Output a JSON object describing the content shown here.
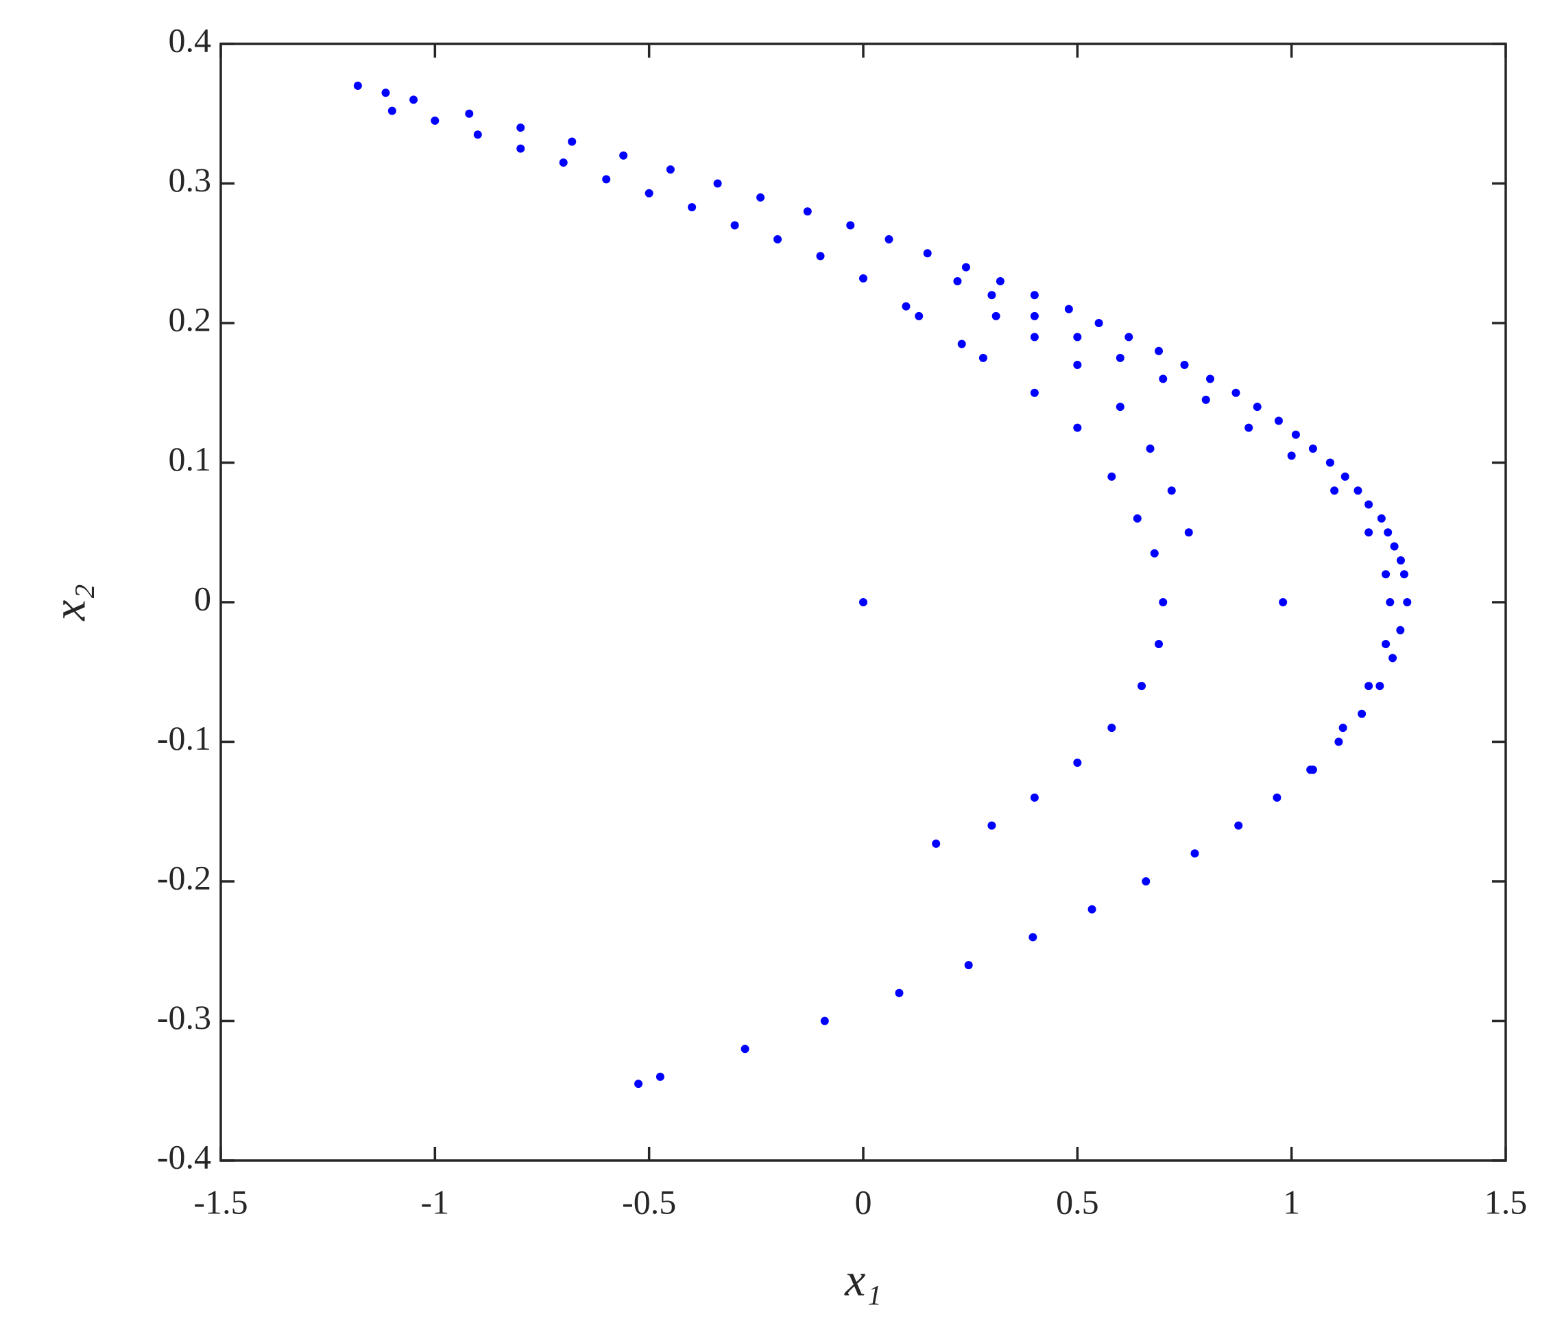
{
  "chart_data": {
    "type": "scatter",
    "xlabel": "x₁",
    "ylabel": "x₂",
    "color": "#0000ff",
    "xlim": [
      -1.5,
      1.5
    ],
    "ylim": [
      -0.4,
      0.4
    ],
    "xticks": [
      -1.5,
      -1,
      -0.5,
      0,
      0.5,
      1,
      1.5
    ],
    "yticks": [
      -0.4,
      -0.3,
      -0.2,
      -0.1,
      0,
      0.1,
      0.2,
      0.3,
      0.4
    ],
    "grid": false,
    "x": [
      -1.18,
      -1.115,
      -1.05,
      -0.92,
      -0.8,
      -0.68,
      -0.56,
      -0.45,
      -0.34,
      -0.24,
      -0.13,
      -0.03,
      0.06,
      0.15,
      0.24,
      0.32,
      0.4,
      0.48,
      0.55,
      0.62,
      0.69,
      0.75,
      0.81,
      0.87,
      0.92,
      0.97,
      1.01,
      1.05,
      1.09,
      1.125,
      1.155,
      1.18,
      1.21,
      1.225,
      1.24,
      1.255,
      1.263,
      1.27,
      1.254,
      1.236,
      1.206,
      1.164,
      1.11,
      1.044,
      0.966,
      0.876,
      0.774,
      0.66,
      0.534,
      0.396,
      0.246,
      0.084,
      -0.09,
      -0.276,
      -0.474,
      -0.525,
      -1.1,
      -1.0,
      -0.9,
      -0.8,
      -0.7,
      -0.6,
      -0.5,
      -0.4,
      -0.3,
      -0.2,
      -0.1,
      0.0,
      0.1,
      0.13,
      0.22,
      0.3,
      0.4,
      0.5,
      0.6,
      0.7,
      0.8,
      0.9,
      1.0,
      1.1,
      1.18,
      1.22,
      1.23,
      1.22,
      1.18,
      1.12,
      1.05,
      0.31,
      0.4,
      0.5,
      0.6,
      0.67,
      0.72,
      0.76,
      0.23,
      0.28,
      0.4,
      0.5,
      0.58,
      0.64,
      0.68,
      0.7,
      0.69,
      0.65,
      0.58,
      0.5,
      0.4,
      0.3,
      0.17,
      0,
      0.98
    ],
    "values": [
      0.37,
      0.365,
      0.36,
      0.35,
      0.34,
      0.33,
      0.32,
      0.31,
      0.3,
      0.29,
      0.28,
      0.27,
      0.26,
      0.25,
      0.24,
      0.23,
      0.22,
      0.21,
      0.2,
      0.19,
      0.18,
      0.17,
      0.16,
      0.15,
      0.14,
      0.13,
      0.12,
      0.11,
      0.1,
      0.09,
      0.08,
      0.07,
      0.06,
      0.05,
      0.04,
      0.03,
      0.02,
      0,
      -0.02,
      -0.04,
      -0.06,
      -0.08,
      -0.1,
      -0.12,
      -0.14,
      -0.16,
      -0.18,
      -0.2,
      -0.22,
      -0.24,
      -0.26,
      -0.28,
      -0.3,
      -0.32,
      -0.34,
      -0.345,
      0.352,
      0.345,
      0.335,
      0.325,
      0.315,
      0.303,
      0.293,
      0.283,
      0.27,
      0.26,
      0.248,
      0.232,
      0.212,
      0.205,
      0.23,
      0.22,
      0.205,
      0.19,
      0.175,
      0.16,
      0.145,
      0.125,
      0.105,
      0.08,
      0.05,
      0.02,
      0,
      -0.03,
      -0.06,
      -0.09,
      -0.12,
      0.205,
      0.19,
      0.17,
      0.14,
      0.11,
      0.08,
      0.05,
      0.185,
      0.175,
      0.15,
      0.125,
      0.09,
      0.06,
      0.035,
      0,
      -0.03,
      -0.06,
      -0.09,
      -0.115,
      -0.14,
      -0.16,
      -0.173,
      0,
      0
    ]
  }
}
